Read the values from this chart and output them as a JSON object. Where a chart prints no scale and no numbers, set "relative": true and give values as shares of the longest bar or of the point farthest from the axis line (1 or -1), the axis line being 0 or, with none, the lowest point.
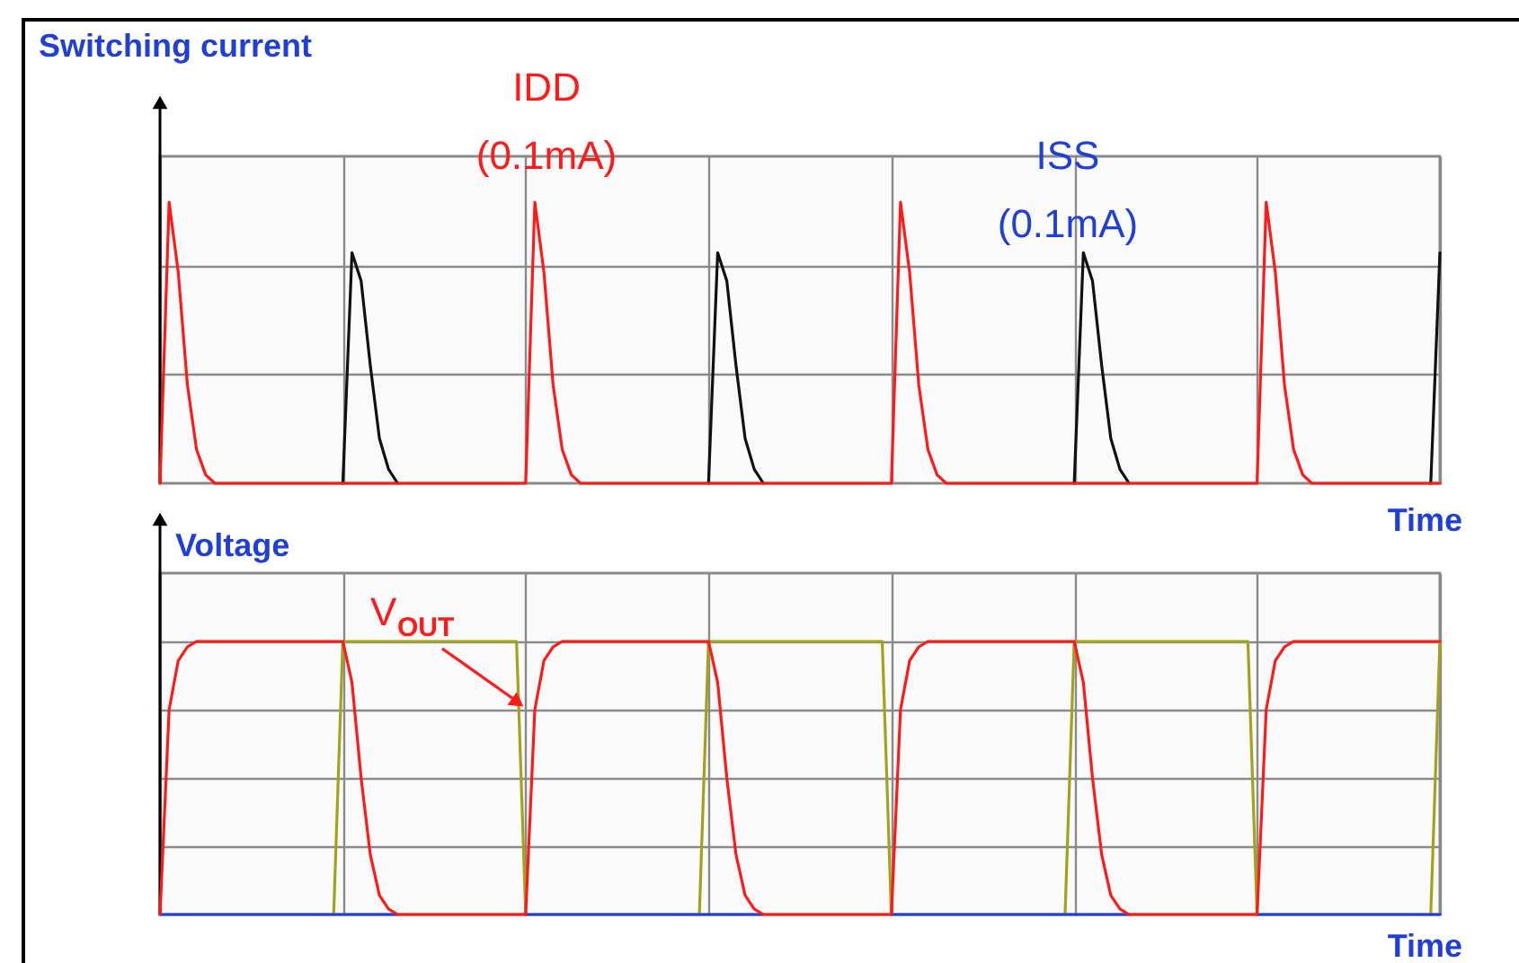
{
  "chart_data": [
    {
      "type": "line",
      "relative": true,
      "ylabel": "Switching current",
      "xlabel": "Time",
      "grid": true,
      "line_style": "solid",
      "categories": [
        null,
        null,
        null,
        null,
        null,
        null,
        null,
        null,
        null,
        null,
        null,
        null,
        null,
        null,
        null,
        null,
        null,
        null,
        null,
        null,
        null,
        null,
        null,
        null,
        null,
        null,
        null,
        null,
        null,
        null,
        null,
        null,
        null,
        null,
        null,
        null,
        null,
        null,
        null,
        null,
        null,
        null,
        null,
        null,
        null,
        null,
        null,
        null,
        null,
        null,
        null,
        null,
        null,
        null,
        null,
        null,
        null,
        null,
        null,
        null,
        null,
        null,
        null,
        null,
        null,
        null,
        null,
        null,
        null,
        null,
        null,
        null,
        null,
        null,
        null,
        null,
        null,
        null,
        null,
        null,
        null,
        null,
        null,
        null,
        null,
        null,
        null,
        null,
        null,
        null,
        null,
        null,
        null,
        null,
        null,
        null,
        null,
        null,
        null,
        null,
        null,
        null,
        null,
        null,
        null,
        null,
        null,
        null,
        null,
        null,
        null,
        null,
        null,
        null,
        null,
        null,
        null,
        null,
        null,
        null,
        null,
        null,
        null,
        null,
        null,
        null,
        null,
        null,
        null,
        null,
        null,
        null,
        null,
        null,
        null,
        null,
        null,
        null,
        null,
        null,
        null
      ],
      "annotations": [
        "IDD (0.1mA)",
        "ISS (0.1mA)"
      ],
      "series": [
        {
          "color": "#111111",
          "values": [
            null,
            null,
            null,
            null,
            null,
            null,
            null,
            null,
            null,
            null,
            null,
            null,
            null,
            null,
            null,
            null,
            null,
            null,
            null,
            null,
            0,
            0.82,
            0.72,
            0.42,
            0.16,
            0.05,
            0,
            null,
            null,
            null,
            null,
            null,
            null,
            null,
            null,
            null,
            null,
            null,
            null,
            null,
            null,
            null,
            null,
            null,
            null,
            null,
            null,
            null,
            null,
            null,
            null,
            null,
            null,
            null,
            null,
            null,
            null,
            null,
            null,
            null,
            0,
            0.82,
            0.72,
            0.42,
            0.16,
            0.05,
            0,
            null,
            null,
            null,
            null,
            null,
            null,
            null,
            null,
            null,
            null,
            null,
            null,
            null,
            null,
            null,
            null,
            null,
            null,
            null,
            null,
            null,
            null,
            null,
            null,
            null,
            null,
            null,
            null,
            null,
            null,
            null,
            null,
            null,
            0,
            0.82,
            0.72,
            0.42,
            0.16,
            0.05,
            0,
            null,
            null,
            null,
            null,
            null,
            null,
            null,
            null,
            null,
            null,
            null,
            null,
            null,
            null,
            null,
            null,
            null,
            null,
            null,
            null,
            null,
            null,
            null,
            null,
            null,
            null,
            null,
            null,
            null,
            null,
            null,
            null,
            0,
            0.82
          ]
        },
        {
          "color": "#ff1a1a",
          "values": [
            0,
            1,
            0.75,
            0.35,
            0.12,
            0.03,
            0,
            0,
            0,
            0,
            0,
            0,
            0,
            0,
            0,
            0,
            0,
            0,
            0,
            0,
            0,
            0,
            0,
            0,
            0,
            0,
            0,
            0,
            0,
            0,
            0,
            0,
            0,
            0,
            0,
            0,
            0,
            0,
            0,
            0,
            0,
            1,
            0.75,
            0.35,
            0.12,
            0.03,
            0,
            0,
            0,
            0,
            0,
            0,
            0,
            0,
            0,
            0,
            0,
            0,
            0,
            0,
            0,
            0,
            0,
            0,
            0,
            0,
            0,
            0,
            0,
            0,
            0,
            0,
            0,
            0,
            0,
            0,
            0,
            0,
            0,
            0,
            0,
            1,
            0.75,
            0.35,
            0.12,
            0.03,
            0,
            0,
            0,
            0,
            0,
            0,
            0,
            0,
            0,
            0,
            0,
            0,
            0,
            0,
            0,
            0,
            0,
            0,
            0,
            0,
            0,
            0,
            0,
            0,
            0,
            0,
            0,
            0,
            0,
            0,
            0,
            0,
            0,
            0,
            0,
            1,
            0.75,
            0.35,
            0.12,
            0.03,
            0,
            0,
            0,
            0,
            0,
            0,
            0,
            0,
            0,
            0,
            0,
            0,
            0,
            0,
            0
          ]
        }
      ]
    },
    {
      "type": "line",
      "relative": true,
      "ylabel": "Voltage",
      "xlabel": "Time",
      "grid": true,
      "line_style": "solid",
      "categories": [
        null,
        null,
        null,
        null,
        null,
        null,
        null,
        null,
        null,
        null,
        null,
        null,
        null,
        null,
        null,
        null,
        null,
        null,
        null,
        null,
        null,
        null,
        null,
        null,
        null,
        null,
        null,
        null,
        null,
        null,
        null,
        null,
        null,
        null,
        null,
        null,
        null,
        null,
        null,
        null,
        null,
        null,
        null,
        null,
        null,
        null,
        null,
        null,
        null,
        null,
        null,
        null,
        null,
        null,
        null,
        null,
        null,
        null,
        null,
        null,
        null,
        null,
        null,
        null,
        null,
        null,
        null,
        null,
        null,
        null,
        null,
        null,
        null,
        null,
        null,
        null,
        null,
        null,
        null,
        null,
        null,
        null,
        null,
        null,
        null,
        null,
        null,
        null,
        null,
        null,
        null,
        null,
        null,
        null,
        null,
        null,
        null,
        null,
        null,
        null,
        null,
        null,
        null,
        null,
        null,
        null,
        null,
        null,
        null,
        null,
        null,
        null,
        null,
        null,
        null,
        null,
        null,
        null,
        null,
        null,
        null,
        null,
        null,
        null,
        null,
        null,
        null,
        null,
        null,
        null,
        null,
        null,
        null,
        null,
        null,
        null,
        null,
        null,
        null,
        null,
        null
      ],
      "series": [
        {
          "color": "#a3a31a",
          "values": [
            null,
            null,
            null,
            null,
            null,
            null,
            null,
            null,
            null,
            null,
            null,
            null,
            null,
            null,
            null,
            null,
            null,
            null,
            null,
            0,
            1,
            1,
            1,
            1,
            1,
            1,
            1,
            1,
            1,
            1,
            1,
            1,
            1,
            1,
            1,
            1,
            1,
            1,
            1,
            1,
            0,
            null,
            null,
            null,
            null,
            null,
            null,
            null,
            null,
            null,
            null,
            null,
            null,
            null,
            null,
            null,
            null,
            null,
            null,
            0,
            1,
            1,
            1,
            1,
            1,
            1,
            1,
            1,
            1,
            1,
            1,
            1,
            1,
            1,
            1,
            1,
            1,
            1,
            1,
            1,
            0,
            null,
            null,
            null,
            null,
            null,
            null,
            null,
            null,
            null,
            null,
            null,
            null,
            null,
            null,
            null,
            null,
            null,
            null,
            0,
            1,
            1,
            1,
            1,
            1,
            1,
            1,
            1,
            1,
            1,
            1,
            1,
            1,
            1,
            1,
            1,
            1,
            1,
            1,
            1,
            0,
            null,
            null,
            null,
            null,
            null,
            null,
            null,
            null,
            null,
            null,
            null,
            null,
            null,
            null,
            null,
            null,
            null,
            null,
            0,
            1
          ]
        },
        {
          "color": "#1f3fd6",
          "values": [
            0,
            0,
            0,
            0,
            0,
            0,
            0,
            0,
            0,
            0,
            0,
            0,
            0,
            0,
            0,
            0,
            0,
            0,
            0,
            0,
            0,
            0,
            0,
            0,
            0,
            0,
            0,
            null,
            null,
            null,
            null,
            null,
            null,
            null,
            null,
            null,
            null,
            null,
            null,
            null,
            0,
            0,
            0,
            0,
            0,
            0,
            0,
            0,
            0,
            0,
            0,
            0,
            0,
            0,
            0,
            0,
            0,
            0,
            0,
            0,
            0,
            0,
            0,
            0,
            0,
            0,
            0,
            null,
            null,
            null,
            null,
            null,
            null,
            null,
            null,
            null,
            null,
            null,
            null,
            null,
            0,
            0,
            0,
            0,
            0,
            0,
            0,
            0,
            0,
            0,
            0,
            0,
            0,
            0,
            0,
            0,
            0,
            0,
            0,
            0,
            0,
            0,
            0,
            0,
            0,
            0,
            0,
            null,
            null,
            null,
            null,
            null,
            null,
            null,
            null,
            null,
            null,
            null,
            null,
            null,
            0,
            0,
            0,
            0,
            0,
            0,
            0,
            0,
            0,
            0,
            0,
            0,
            0,
            0,
            0,
            0,
            0,
            0,
            0,
            0,
            0
          ]
        },
        {
          "name": "V$_{OUT}$",
          "color": "#ff1a1a",
          "values": [
            0,
            0.75,
            0.93,
            0.98,
            1,
            1,
            1,
            1,
            1,
            1,
            1,
            1,
            1,
            1,
            1,
            1,
            1,
            1,
            1,
            1,
            1,
            0.85,
            0.5,
            0.22,
            0.07,
            0.02,
            0,
            0,
            0,
            0,
            0,
            0,
            0,
            0,
            0,
            0,
            0,
            0,
            0,
            0,
            0,
            0.75,
            0.93,
            0.98,
            1,
            1,
            1,
            1,
            1,
            1,
            1,
            1,
            1,
            1,
            1,
            1,
            1,
            1,
            1,
            1,
            1,
            0.85,
            0.5,
            0.22,
            0.07,
            0.02,
            0,
            0,
            0,
            0,
            0,
            0,
            0,
            0,
            0,
            0,
            0,
            0,
            0,
            0,
            0,
            0.75,
            0.93,
            0.98,
            1,
            1,
            1,
            1,
            1,
            1,
            1,
            1,
            1,
            1,
            1,
            1,
            1,
            1,
            1,
            1,
            1,
            0.85,
            0.5,
            0.22,
            0.07,
            0.02,
            0,
            0,
            0,
            0,
            0,
            0,
            0,
            0,
            0,
            0,
            0,
            0,
            0,
            0,
            0,
            0.75,
            0.93,
            0.98,
            1,
            1,
            1,
            1,
            1,
            1,
            1,
            1,
            1,
            1,
            1,
            1,
            1,
            1,
            1,
            1,
            1
          ]
        }
      ]
    }
  ]
}
